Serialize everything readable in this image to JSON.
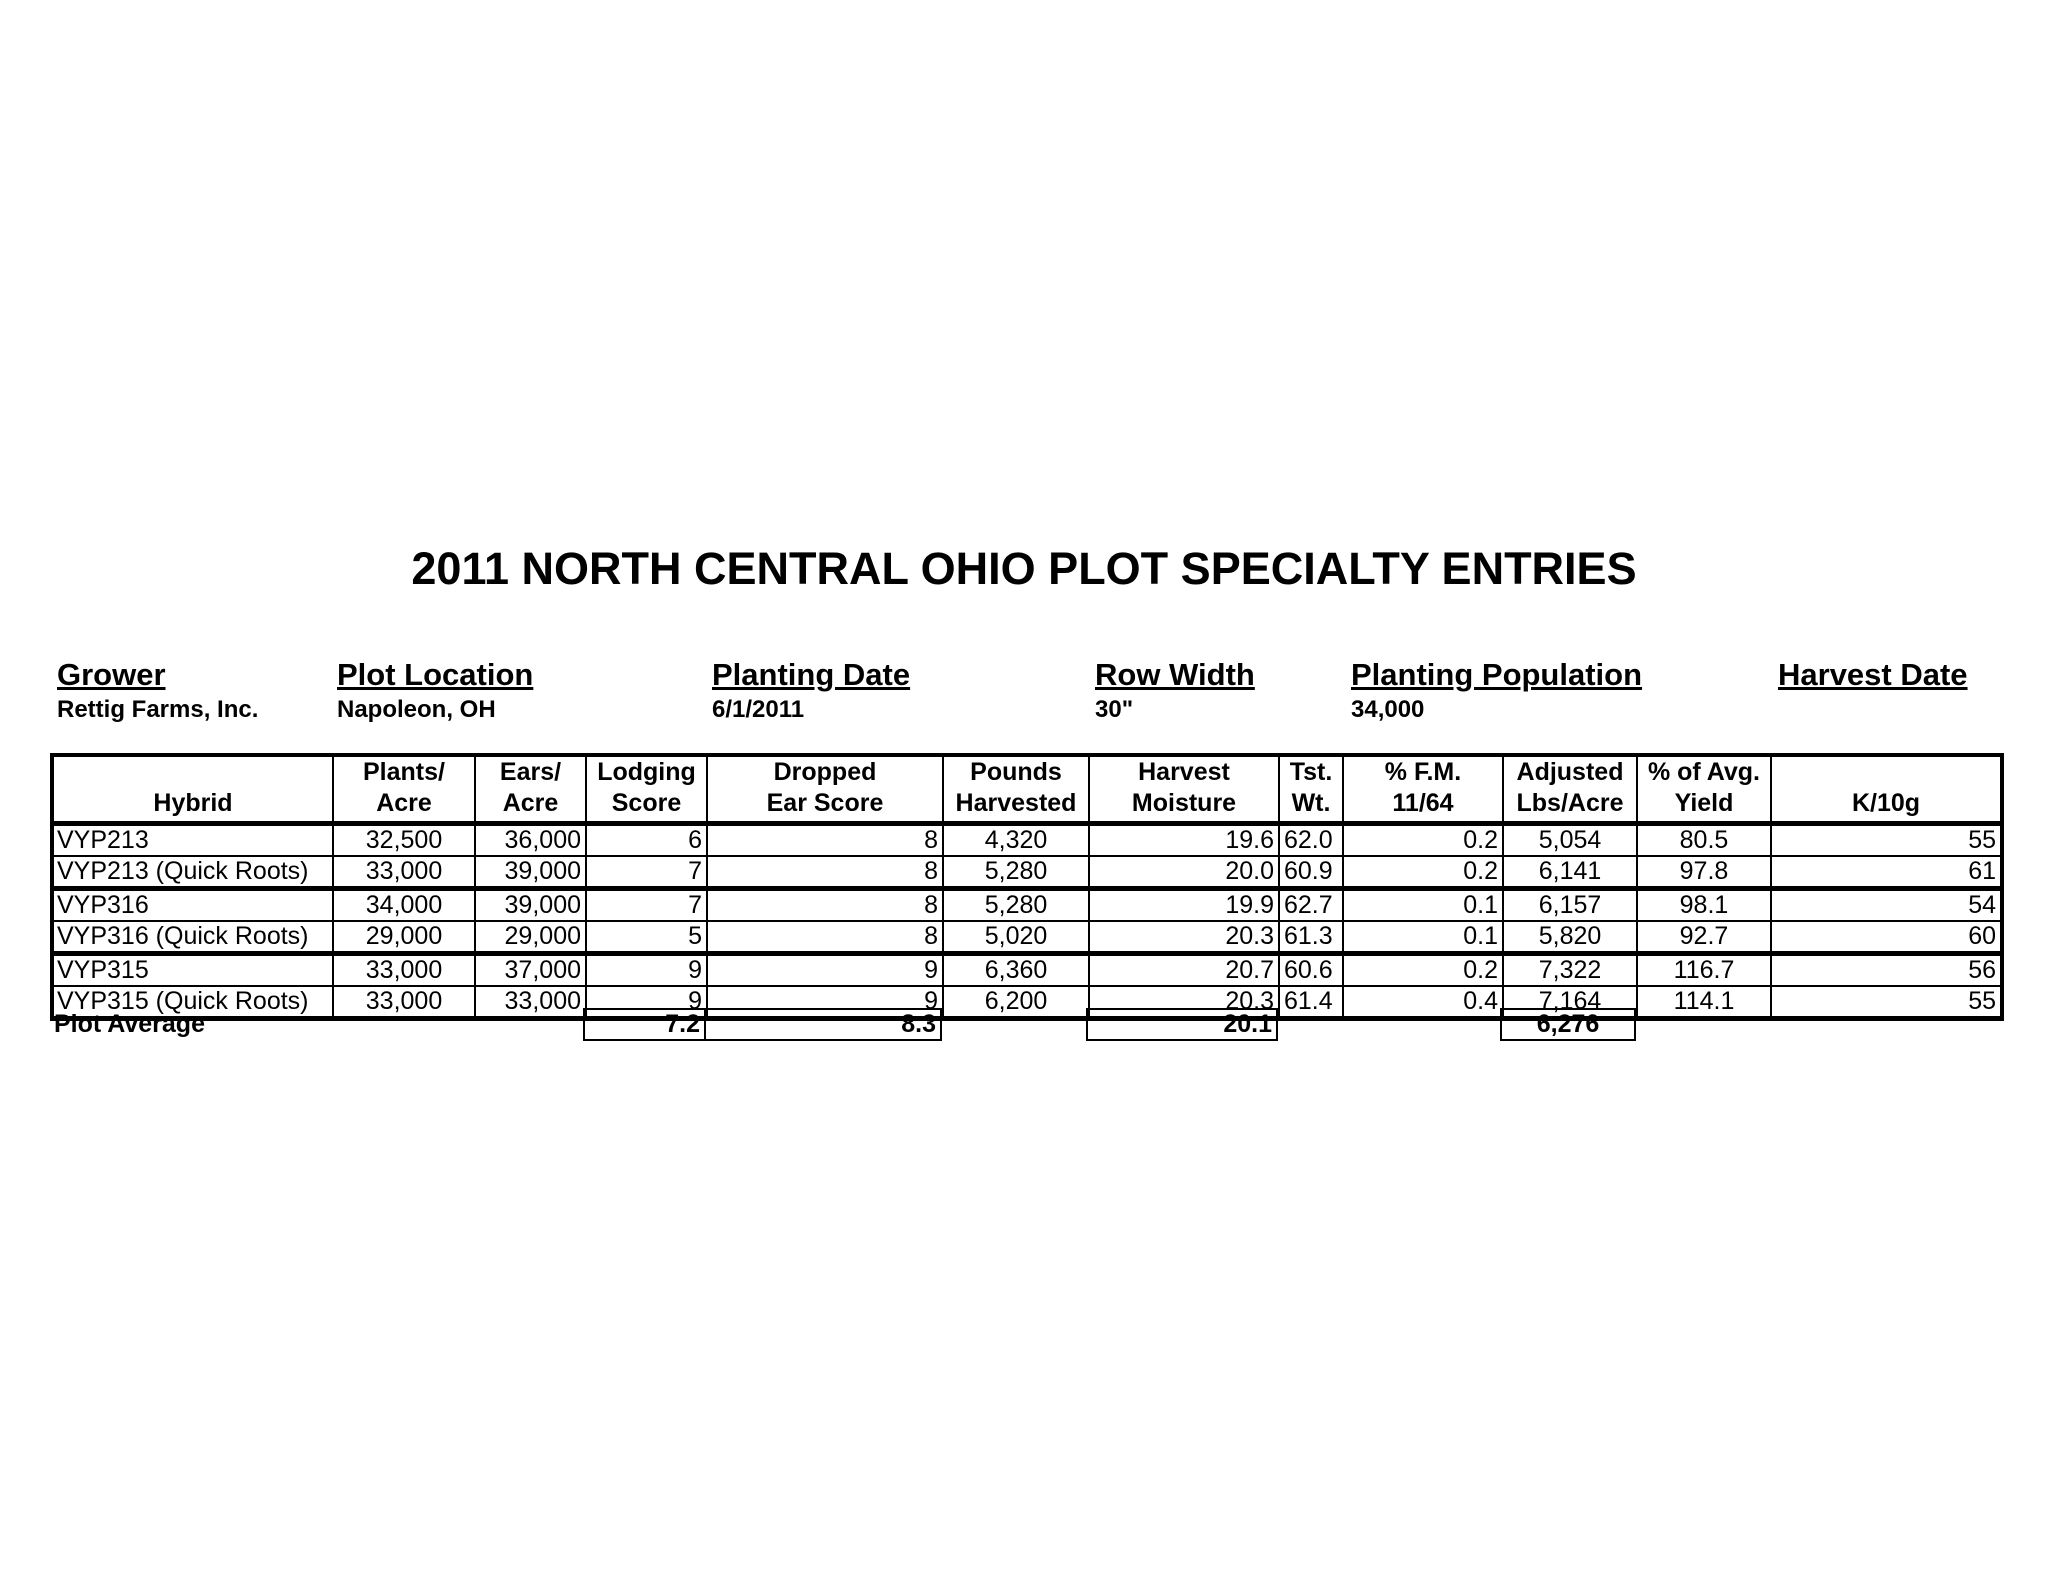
{
  "title": "2011 NORTH CENTRAL OHIO PLOT SPECIALTY ENTRIES",
  "info": {
    "grower_label": "Grower",
    "grower": "Rettig Farms, Inc.",
    "location_label": "Plot Location",
    "location": "Napoleon, OH",
    "planting_date_label": "Planting Date",
    "planting_date": "6/1/2011",
    "row_width_label": "Row Width",
    "row_width": "30\"",
    "population_label": "Planting Population",
    "population": "34,000",
    "harvest_date_label": "Harvest Date"
  },
  "columns": [
    {
      "l1": "",
      "l2": "Hybrid"
    },
    {
      "l1": "Plants/",
      "l2": "Acre"
    },
    {
      "l1": "Ears/",
      "l2": "Acre"
    },
    {
      "l1": "Lodging",
      "l2": "Score"
    },
    {
      "l1": "Dropped",
      "l2": "Ear Score"
    },
    {
      "l1": "Pounds",
      "l2": "Harvested"
    },
    {
      "l1": "Harvest",
      "l2": "Moisture"
    },
    {
      "l1": "Tst.",
      "l2": "Wt."
    },
    {
      "l1": "% F.M.",
      "l2": "11/64"
    },
    {
      "l1": "Adjusted",
      "l2": "Lbs/Acre"
    },
    {
      "l1": "% of Avg.",
      "l2": "Yield"
    },
    {
      "l1": "",
      "l2": "K/10g"
    }
  ],
  "rows": [
    [
      "VYP213",
      "32,500",
      "36,000",
      "6",
      "8",
      "4,320",
      "19.6",
      "62.0",
      "0.2",
      "5,054",
      "80.5",
      "55"
    ],
    [
      "VYP213 (Quick Roots)",
      "33,000",
      "39,000",
      "7",
      "8",
      "5,280",
      "20.0",
      "60.9",
      "0.2",
      "6,141",
      "97.8",
      "61"
    ],
    [
      "VYP316",
      "34,000",
      "39,000",
      "7",
      "8",
      "5,280",
      "19.9",
      "62.7",
      "0.1",
      "6,157",
      "98.1",
      "54"
    ],
    [
      "VYP316 (Quick Roots)",
      "29,000",
      "29,000",
      "5",
      "8",
      "5,020",
      "20.3",
      "61.3",
      "0.1",
      "5,820",
      "92.7",
      "60"
    ],
    [
      "VYP315",
      "33,000",
      "37,000",
      "9",
      "9",
      "6,360",
      "20.7",
      "60.6",
      "0.2",
      "7,322",
      "116.7",
      "56"
    ],
    [
      "VYP315 (Quick Roots)",
      "33,000",
      "33,000",
      "9",
      "9",
      "6,200",
      "20.3",
      "61.4",
      "0.4",
      "7,164",
      "114.1",
      "55"
    ]
  ],
  "average": {
    "label": "Plot Average",
    "lodging": "7.2",
    "dropped": "8.3",
    "moisture": "20.1",
    "adjusted": "6,276"
  }
}
